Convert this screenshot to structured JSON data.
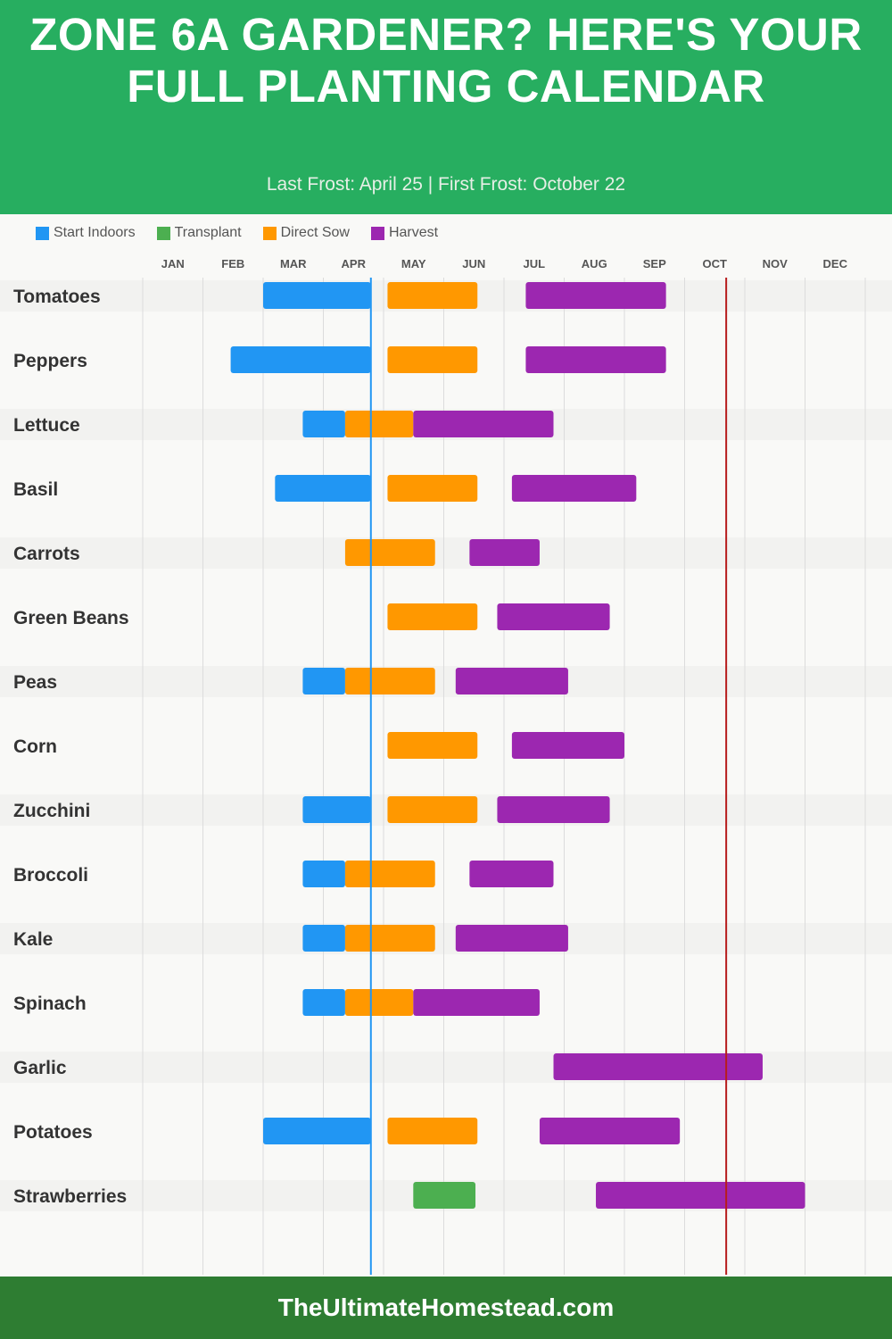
{
  "header": {
    "title": "ZONE 6A GARDENER? HERE'S YOUR FULL PLANTING CALENDAR",
    "subtitle": "Last Frost: April 25 | First Frost: October 22",
    "color": "#27ae60"
  },
  "footer": {
    "text": "TheUltimateHomestead.com",
    "color": "#2e7d32"
  },
  "chart_data": {
    "type": "gantt",
    "x_ticks": [
      "JAN",
      "FEB",
      "MAR",
      "APR",
      "MAY",
      "JUN",
      "JUL",
      "AUG",
      "SEP",
      "OCT",
      "NOV",
      "DEC"
    ],
    "legend": [
      {
        "key": "indoor",
        "label": "Start Indoors",
        "color": "#2196f3"
      },
      {
        "key": "transplant",
        "label": "Transplant",
        "color": "#4caf50"
      },
      {
        "key": "sow",
        "label": "Direct Sow",
        "color": "#ff9800"
      },
      {
        "key": "harvest",
        "label": "Harvest",
        "color": "#9c27b0"
      }
    ],
    "legend_position": "top-left",
    "reference_lines": [
      {
        "label": "Last Frost",
        "date": "04-25",
        "color": "#2196f3"
      },
      {
        "label": "First Frost",
        "date": "10-22",
        "color": "#b71c1c"
      }
    ],
    "grid": true,
    "crops": [
      {
        "name": "Tomatoes",
        "bars": [
          {
            "type": "indoor",
            "start": "03-01",
            "end": "04-25"
          },
          {
            "type": "sow",
            "start": "05-03",
            "end": "06-18"
          },
          {
            "type": "harvest",
            "start": "07-12",
            "end": "09-22"
          }
        ]
      },
      {
        "name": "Peppers",
        "bars": [
          {
            "type": "indoor",
            "start": "02-15",
            "end": "04-25"
          },
          {
            "type": "sow",
            "start": "05-03",
            "end": "06-18"
          },
          {
            "type": "harvest",
            "start": "07-12",
            "end": "09-22"
          }
        ]
      },
      {
        "name": "Lettuce",
        "bars": [
          {
            "type": "indoor",
            "start": "03-21",
            "end": "04-12"
          },
          {
            "type": "sow",
            "start": "04-12",
            "end": "05-16"
          },
          {
            "type": "harvest",
            "start": "05-16",
            "end": "07-26"
          }
        ]
      },
      {
        "name": "Basil",
        "bars": [
          {
            "type": "indoor",
            "start": "03-07",
            "end": "04-25"
          },
          {
            "type": "sow",
            "start": "05-03",
            "end": "06-18"
          },
          {
            "type": "harvest",
            "start": "07-05",
            "end": "09-07"
          }
        ]
      },
      {
        "name": "Carrots",
        "bars": [
          {
            "type": "sow",
            "start": "04-12",
            "end": "05-27"
          },
          {
            "type": "harvest",
            "start": "06-14",
            "end": "07-19"
          }
        ]
      },
      {
        "name": "Green Beans",
        "bars": [
          {
            "type": "sow",
            "start": "05-03",
            "end": "06-18"
          },
          {
            "type": "harvest",
            "start": "06-28",
            "end": "08-24"
          }
        ]
      },
      {
        "name": "Peas",
        "bars": [
          {
            "type": "indoor",
            "start": "03-21",
            "end": "04-12"
          },
          {
            "type": "sow",
            "start": "04-12",
            "end": "05-27"
          },
          {
            "type": "harvest",
            "start": "06-07",
            "end": "08-03"
          }
        ]
      },
      {
        "name": "Corn",
        "bars": [
          {
            "type": "sow",
            "start": "05-03",
            "end": "06-18"
          },
          {
            "type": "harvest",
            "start": "07-05",
            "end": "09-01"
          }
        ]
      },
      {
        "name": "Zucchini",
        "bars": [
          {
            "type": "indoor",
            "start": "03-21",
            "end": "04-25"
          },
          {
            "type": "sow",
            "start": "05-03",
            "end": "06-18"
          },
          {
            "type": "harvest",
            "start": "06-28",
            "end": "08-24"
          }
        ]
      },
      {
        "name": "Broccoli",
        "bars": [
          {
            "type": "indoor",
            "start": "03-21",
            "end": "04-12"
          },
          {
            "type": "sow",
            "start": "04-12",
            "end": "05-27"
          },
          {
            "type": "harvest",
            "start": "06-14",
            "end": "07-26"
          }
        ]
      },
      {
        "name": "Kale",
        "bars": [
          {
            "type": "indoor",
            "start": "03-21",
            "end": "04-12"
          },
          {
            "type": "sow",
            "start": "04-12",
            "end": "05-27"
          },
          {
            "type": "harvest",
            "start": "06-07",
            "end": "08-03"
          }
        ]
      },
      {
        "name": "Spinach",
        "bars": [
          {
            "type": "indoor",
            "start": "03-21",
            "end": "04-12"
          },
          {
            "type": "sow",
            "start": "04-12",
            "end": "05-16"
          },
          {
            "type": "harvest",
            "start": "05-16",
            "end": "07-19"
          }
        ]
      },
      {
        "name": "Garlic",
        "bars": [
          {
            "type": "harvest",
            "start": "07-26",
            "end": "11-10"
          }
        ]
      },
      {
        "name": "Potatoes",
        "bars": [
          {
            "type": "indoor",
            "start": "03-01",
            "end": "04-25"
          },
          {
            "type": "sow",
            "start": "05-03",
            "end": "06-18"
          },
          {
            "type": "harvest",
            "start": "07-19",
            "end": "09-29"
          }
        ]
      },
      {
        "name": "Strawberries",
        "bars": [
          {
            "type": "transplant",
            "start": "05-16",
            "end": "06-17"
          },
          {
            "type": "harvest",
            "start": "08-17",
            "end": "12-01"
          }
        ]
      }
    ]
  }
}
